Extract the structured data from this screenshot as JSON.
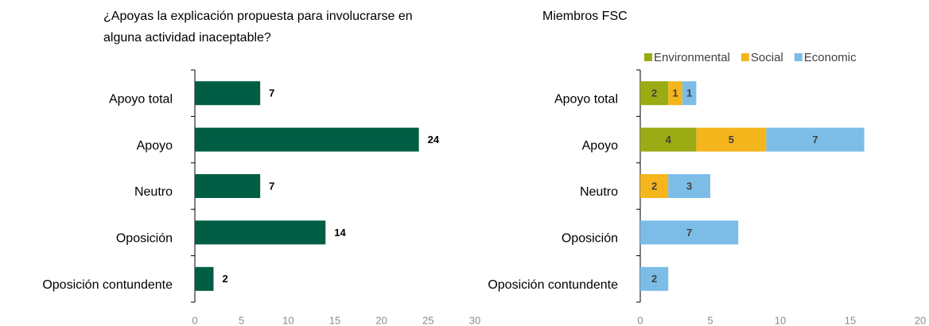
{
  "chart_data": [
    {
      "type": "bar",
      "title": "¿Apoyas la explicación propuesta para involucrarse en alguna actividad inaceptable?",
      "categories": [
        "Apoyo total",
        "Apoyo",
        "Neutro",
        "Oposición",
        "Oposición contundente"
      ],
      "values": [
        7,
        24,
        7,
        14,
        2
      ],
      "color": "#005e44",
      "xlim": [
        0,
        30
      ],
      "xticks": [
        0,
        5,
        10,
        15,
        20,
        25,
        30
      ]
    },
    {
      "type": "stacked_bar",
      "title": "Miembros FSC",
      "categories": [
        "Apoyo total",
        "Apoyo",
        "Neutro",
        "Oposición",
        "Oposición contundente"
      ],
      "series": [
        {
          "name": "Environmental",
          "color": "#9aab13",
          "values": [
            2,
            4,
            null,
            null,
            null
          ]
        },
        {
          "name": "Social",
          "color": "#f5b51c",
          "values": [
            1,
            5,
            2,
            null,
            null
          ]
        },
        {
          "name": "Economic",
          "color": "#7cbde8",
          "values": [
            1,
            7,
            3,
            7,
            2
          ]
        }
      ],
      "xlim": [
        0,
        20
      ],
      "xticks": [
        0,
        5,
        10,
        15,
        20
      ]
    }
  ]
}
